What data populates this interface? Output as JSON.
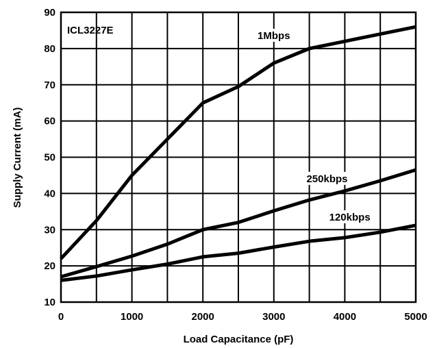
{
  "chart_data": {
    "type": "line",
    "annotation": "ICL3227E",
    "xlabel": "Load Capacitance (pF)",
    "ylabel": "Supply Current (mA)",
    "xlim": [
      0,
      5000
    ],
    "ylim": [
      10,
      90
    ],
    "x_ticks": [
      0,
      1000,
      2000,
      3000,
      4000,
      5000
    ],
    "y_ticks": [
      10,
      20,
      30,
      40,
      50,
      60,
      70,
      80,
      90
    ],
    "grid": true,
    "series": [
      {
        "name": "1Mbps",
        "color": "#000000",
        "x": [
          0,
          500,
          1000,
          1500,
          2000,
          2500,
          3000,
          3500,
          4000,
          4500,
          5000
        ],
        "y": [
          22,
          32.5,
          45,
          55,
          65,
          69.5,
          76,
          80,
          82,
          84,
          86
        ]
      },
      {
        "name": "250kbps",
        "color": "#000000",
        "x": [
          0,
          500,
          1000,
          1500,
          2000,
          2500,
          3000,
          3500,
          4000,
          4500,
          5000
        ],
        "y": [
          17,
          19.8,
          22.7,
          26,
          30,
          32,
          35.2,
          38.2,
          40.7,
          43.5,
          46.5
        ]
      },
      {
        "name": "120kbps",
        "color": "#000000",
        "x": [
          0,
          500,
          1000,
          1500,
          2000,
          2500,
          3000,
          3500,
          4000,
          4500,
          5000
        ],
        "y": [
          16,
          17.2,
          18.9,
          20.5,
          22.5,
          23.5,
          25.2,
          26.8,
          27.8,
          29.3,
          31.2
        ]
      }
    ]
  }
}
